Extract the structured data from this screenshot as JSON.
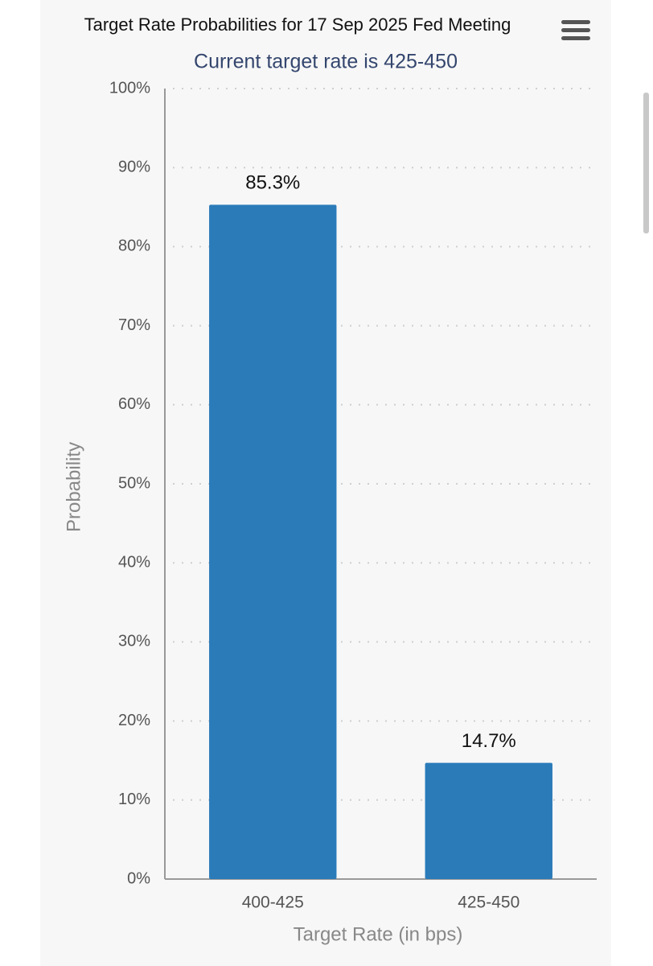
{
  "chart_data": {
    "type": "bar",
    "title": "Target Rate Probabilities for 17 Sep 2025 Fed Meeting",
    "subtitle": "Current target rate is 425-450",
    "x_label": "Target Rate (in bps)",
    "y_label": "Probability",
    "categories": [
      "400-425",
      "425-450"
    ],
    "values": [
      85.3,
      14.7
    ],
    "value_labels": [
      "85.3%",
      "14.7%"
    ],
    "color": "#2b7bb9",
    "ylim": [
      0,
      100
    ],
    "yticks": [
      {
        "value": 0,
        "label": "0%"
      },
      {
        "value": 10,
        "label": "10%"
      },
      {
        "value": 20,
        "label": "20%"
      },
      {
        "value": 30,
        "label": "30%"
      },
      {
        "value": 40,
        "label": "40%"
      },
      {
        "value": 50,
        "label": "50%"
      },
      {
        "value": 60,
        "label": "60%"
      },
      {
        "value": 70,
        "label": "70%"
      },
      {
        "value": 80,
        "label": "80%"
      },
      {
        "value": 90,
        "label": "90%"
      },
      {
        "value": 100,
        "label": "100%"
      }
    ],
    "grid": true
  }
}
